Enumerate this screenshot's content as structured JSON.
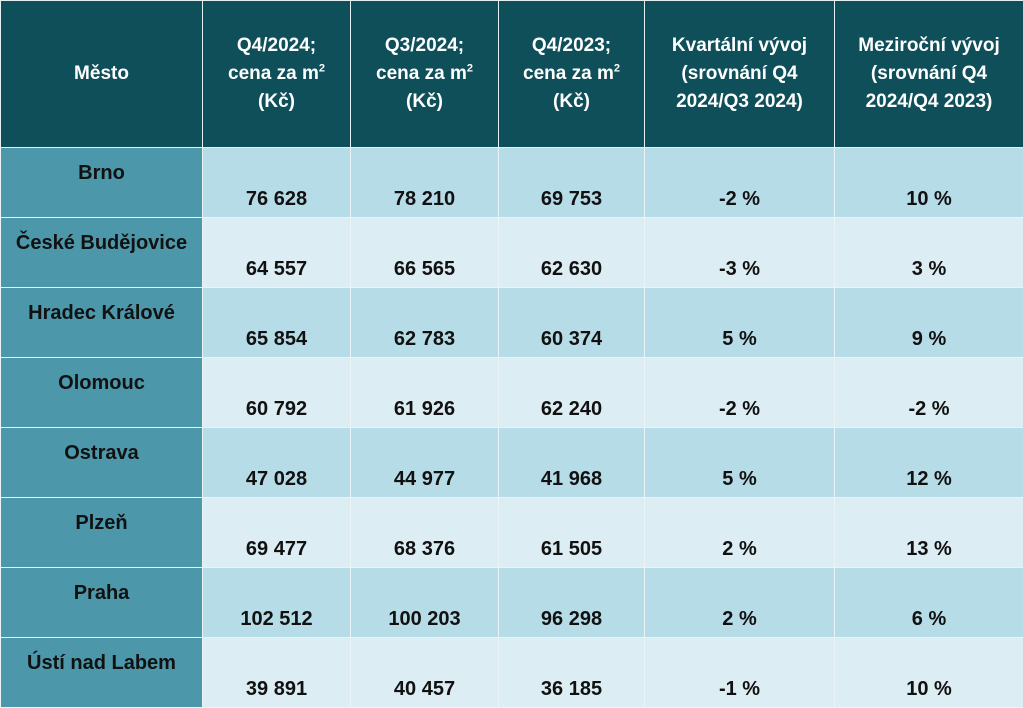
{
  "header": {
    "city": "Město",
    "q4_2024": {
      "line1": "Q4/2024;",
      "line2": "cena za m",
      "sup": "2",
      "line3": "(Kč)"
    },
    "q3_2024": {
      "line1": "Q3/2024;",
      "line2": "cena za m",
      "sup": "2",
      "line3": "(Kč)"
    },
    "q4_2023": {
      "line1": "Q4/2023;",
      "line2": "cena za m",
      "sup": "2",
      "line3": "(Kč)"
    },
    "quarterly": {
      "line1": "Kvartální vývoj",
      "line2": "(srovnání Q4",
      "line3": "2024/Q3 2024)"
    },
    "yearly": {
      "line1": "Meziroční vývoj",
      "line2": "(srovnání Q4",
      "line3": "2024/Q4 2023)"
    }
  },
  "rows": [
    {
      "city": "Brno",
      "q4_2024": "76 628",
      "q3_2024": "78 210",
      "q4_2023": "69 753",
      "quarterly": "-2 %",
      "yearly": "10 %"
    },
    {
      "city": "České Budějovice",
      "q4_2024": "64 557",
      "q3_2024": "66 565",
      "q4_2023": "62 630",
      "quarterly": "-3 %",
      "yearly": "3 %"
    },
    {
      "city": "Hradec Králové",
      "q4_2024": "65 854",
      "q3_2024": "62 783",
      "q4_2023": "60 374",
      "quarterly": "5 %",
      "yearly": "9 %"
    },
    {
      "city": "Olomouc",
      "q4_2024": "60 792",
      "q3_2024": "61 926",
      "q4_2023": "62 240",
      "quarterly": "-2 %",
      "yearly": "-2 %"
    },
    {
      "city": "Ostrava",
      "q4_2024": "47 028",
      "q3_2024": "44 977",
      "q4_2023": "41 968",
      "quarterly": "5 %",
      "yearly": "12 %"
    },
    {
      "city": "Plzeň",
      "q4_2024": "69 477",
      "q3_2024": "68 376",
      "q4_2023": "61 505",
      "quarterly": "2 %",
      "yearly": "13 %"
    },
    {
      "city": "Praha",
      "q4_2024": "102 512",
      "q3_2024": "100 203",
      "q4_2023": "96 298",
      "quarterly": "2 %",
      "yearly": "6 %"
    },
    {
      "city": "Ústí nad Labem",
      "q4_2024": "39 891",
      "q3_2024": "40 457",
      "q4_2023": "36 185",
      "quarterly": "-1 %",
      "yearly": "10 %"
    }
  ],
  "colors": {
    "header_bg": "#0f4f59",
    "city_bg": "#4c97aa",
    "row_odd_bg": "#b6dce8",
    "row_even_bg": "#dcedf3"
  }
}
